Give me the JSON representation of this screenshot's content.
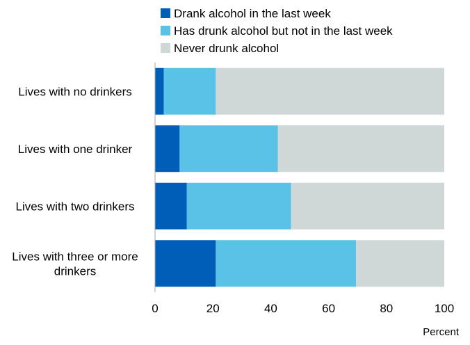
{
  "chart_data": {
    "type": "bar",
    "orientation": "horizontal",
    "stacked": true,
    "categories": [
      [
        "Lives with no drinkers"
      ],
      [
        "Lives with one drinker"
      ],
      [
        "Lives with two drinkers"
      ],
      [
        "Lives with three or more",
        "drinkers"
      ]
    ],
    "series": [
      {
        "name": "Drank alcohol in the last week",
        "color": "#005eb8",
        "values": [
          3,
          8.5,
          11,
          21
        ]
      },
      {
        "name": "Has drunk alcohol but not in the last week",
        "color": "#5bc2e7",
        "values": [
          18,
          34,
          36,
          48.5
        ]
      },
      {
        "name": "Never drunk alcohol",
        "color": "#d0d7d7",
        "values": [
          79,
          57.5,
          53,
          30.5
        ]
      }
    ],
    "xlim": [
      0,
      100
    ],
    "xticks": [
      0,
      20,
      40,
      60,
      80,
      100
    ],
    "xlabel": "Percent",
    "ylabel": "",
    "title": "",
    "legend_position": "top",
    "grid": false
  }
}
